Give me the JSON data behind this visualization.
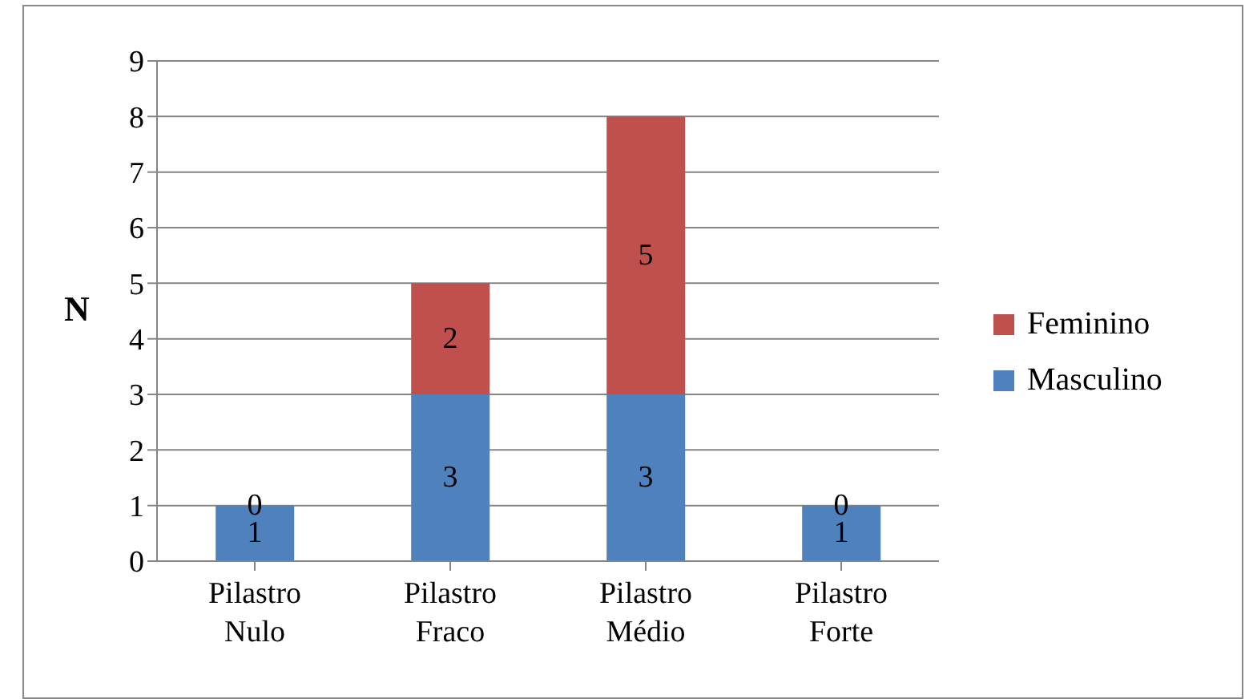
{
  "chart_data": {
    "type": "bar",
    "stacked": true,
    "ylabel": "N",
    "categories": [
      "Pilastro Nulo",
      "Pilastro Fraco",
      "Pilastro Médio",
      "Pilastro Forte"
    ],
    "series": [
      {
        "name": "Masculino",
        "color": "#4f81bd",
        "values": [
          1,
          3,
          3,
          1
        ]
      },
      {
        "name": "Feminino",
        "color": "#c0504d",
        "values": [
          0,
          2,
          5,
          0
        ]
      }
    ],
    "ylim": [
      0,
      9
    ],
    "yticks": [
      0,
      1,
      2,
      3,
      4,
      5,
      6,
      7,
      8,
      9
    ],
    "grid": "y",
    "legend": "right",
    "data_labels": true
  }
}
